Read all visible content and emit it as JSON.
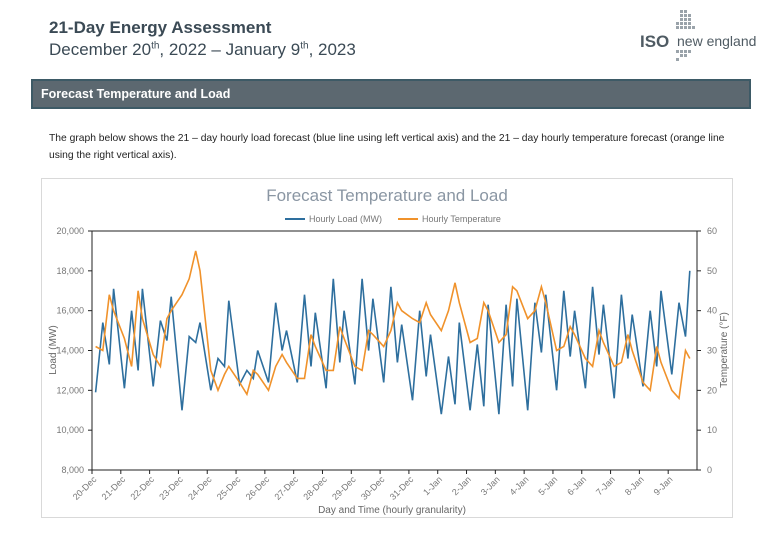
{
  "header": {
    "title": "21-Day Energy Assessment",
    "date_range": [
      "December 20",
      "th",
      ", 2022 – January 9",
      "th",
      ", 2023"
    ],
    "logo": [
      "ISO",
      "new england"
    ]
  },
  "section": {
    "heading": "Forecast Temperature and Load",
    "text": "The graph below shows the 21 – day hourly load forecast (blue line using left vertical axis) and the 21 – day hourly temperature forecast (orange line using the right vertical axis)."
  },
  "chart_data": {
    "type": "line",
    "title": "Forecast Temperature and Load",
    "x_label": "Day and Time (hourly granularity)",
    "y_label": "Load (MW)",
    "y2_label": "Temperature (°F)",
    "xlim": [
      0,
      21
    ],
    "xticks": [
      {
        "value": 0,
        "label": "20-Dec"
      },
      {
        "value": 1,
        "label": "21-Dec"
      },
      {
        "value": 2,
        "label": "22-Dec"
      },
      {
        "value": 3,
        "label": "23-Dec"
      },
      {
        "value": 4,
        "label": "24-Dec"
      },
      {
        "value": 5,
        "label": "25-Dec"
      },
      {
        "value": 6,
        "label": "26-Dec"
      },
      {
        "value": 7,
        "label": "27-Dec"
      },
      {
        "value": 8,
        "label": "28-Dec"
      },
      {
        "value": 9,
        "label": "29-Dec"
      },
      {
        "value": 10,
        "label": "30-Dec"
      },
      {
        "value": 11,
        "label": "31-Dec"
      },
      {
        "value": 12,
        "label": "1-Jan"
      },
      {
        "value": 13,
        "label": "2-Jan"
      },
      {
        "value": 14,
        "label": "3-Jan"
      },
      {
        "value": 15,
        "label": "4-Jan"
      },
      {
        "value": 16,
        "label": "5-Jan"
      },
      {
        "value": 17,
        "label": "6-Jan"
      },
      {
        "value": 18,
        "label": "7-Jan"
      },
      {
        "value": 19,
        "label": "8-Jan"
      },
      {
        "value": 20,
        "label": "9-Jan"
      }
    ],
    "ylim": [
      8000,
      20000
    ],
    "yticks": [
      {
        "value": 8000,
        "label": "8,000"
      },
      {
        "value": 10000,
        "label": "10,000"
      },
      {
        "value": 12000,
        "label": "12,000"
      },
      {
        "value": 14000,
        "label": "14,000"
      },
      {
        "value": 16000,
        "label": "16,000"
      },
      {
        "value": 18000,
        "label": "18,000"
      },
      {
        "value": 20000,
        "label": "20,000"
      }
    ],
    "y2lim": [
      0,
      60
    ],
    "y2ticks": [
      0,
      10,
      20,
      30,
      40,
      50,
      60
    ],
    "x": [
      0.125,
      0.375,
      0.6,
      0.75,
      1.125,
      1.375,
      1.6,
      1.75,
      2.125,
      2.375,
      2.6,
      2.75,
      3.125,
      3.375,
      3.6,
      3.75,
      4.125,
      4.375,
      4.6,
      4.75,
      5.125,
      5.375,
      5.6,
      5.75,
      6.125,
      6.375,
      6.6,
      6.75,
      7.125,
      7.375,
      7.6,
      7.75,
      8.125,
      8.375,
      8.6,
      8.75,
      9.125,
      9.375,
      9.6,
      9.75,
      10.125,
      10.375,
      10.6,
      10.75,
      11.125,
      11.375,
      11.6,
      11.75,
      12.125,
      12.375,
      12.6,
      12.75,
      13.125,
      13.375,
      13.6,
      13.75,
      14.125,
      14.375,
      14.6,
      14.75,
      15.125,
      15.375,
      15.6,
      15.75,
      16.125,
      16.375,
      16.6,
      16.75,
      17.125,
      17.375,
      17.6,
      17.75,
      18.125,
      18.375,
      18.6,
      18.75,
      19.125,
      19.375,
      19.6,
      19.75,
      20.125,
      20.375,
      20.6,
      20.75
    ],
    "series": [
      {
        "name": "Hourly Load (MW)",
        "color": "#2e6f9e",
        "values": [
          11900,
          15400,
          13300,
          17100,
          12100,
          16000,
          13000,
          17100,
          12200,
          15500,
          14500,
          16700,
          11000,
          14700,
          14400,
          15400,
          12000,
          13600,
          13200,
          16500,
          12300,
          13000,
          12600,
          14000,
          12400,
          16400,
          14000,
          15000,
          12400,
          16800,
          13200,
          15900,
          12100,
          17600,
          13400,
          16000,
          12300,
          17600,
          14000,
          16600,
          12400,
          17200,
          13400,
          15300,
          11500,
          16000,
          12700,
          14800,
          10800,
          13700,
          11300,
          15400,
          11000,
          14300,
          11200,
          16300,
          10800,
          16300,
          12200,
          16600,
          11000,
          16400,
          13900,
          16800,
          12000,
          17000,
          13700,
          16000,
          12100,
          17200,
          13800,
          16300,
          11600,
          16800,
          13600,
          15800,
          12200,
          16000,
          13200,
          17000,
          12800,
          16400,
          14700,
          18000
        ]
      },
      {
        "name": "Hourly Temperature",
        "color": "#f0922b",
        "axis": "y2",
        "values": [
          31,
          30,
          44,
          40,
          33,
          26,
          45,
          38,
          29,
          26,
          38,
          40,
          44,
          48,
          55,
          50,
          25,
          20,
          24,
          26,
          22,
          19,
          25,
          24,
          20,
          26,
          29,
          27,
          23,
          23,
          34,
          31,
          25,
          25,
          36,
          33,
          26,
          25,
          35,
          34,
          31,
          35,
          42,
          40,
          38,
          37,
          42,
          39,
          35,
          40,
          47,
          42,
          32,
          33,
          42,
          40,
          32,
          34,
          46,
          45,
          38,
          40,
          46,
          42,
          30,
          31,
          36,
          34,
          28,
          26,
          35,
          32,
          26,
          27,
          34,
          30,
          22,
          20,
          31,
          27,
          20,
          18,
          30,
          28
        ]
      }
    ],
    "grid": false
  }
}
